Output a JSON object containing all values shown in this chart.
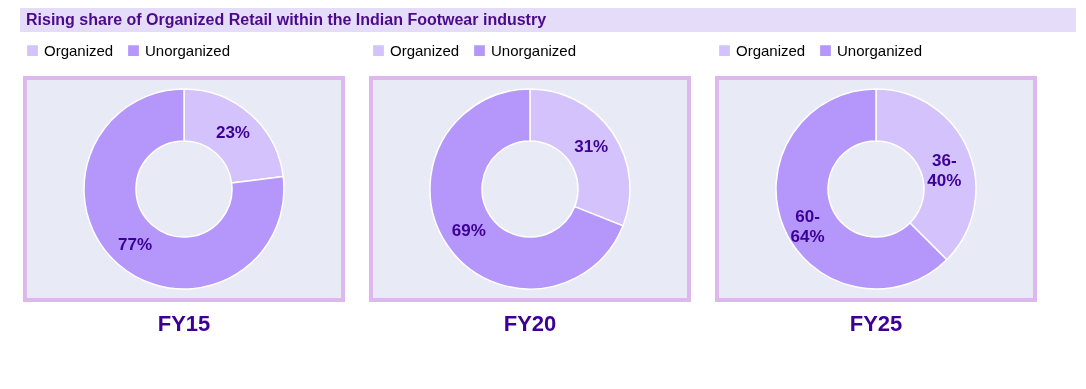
{
  "chart_data": [
    {
      "type": "donut",
      "title": "FY15",
      "annotations": [
        "Rising share of Organized Retail within the Indian Footwear industry"
      ],
      "categories": [
        "Organized",
        "Unorganized"
      ],
      "values": [
        23,
        77
      ],
      "colors": [
        "#d4c2fc",
        "#b596fb"
      ],
      "value_labels": [
        "23%",
        "77%"
      ],
      "legend": "top"
    },
    {
      "type": "donut",
      "title": "FY20",
      "categories": [
        "Organized",
        "Unorganized"
      ],
      "values": [
        31,
        69
      ],
      "colors": [
        "#d4c2fc",
        "#b596fb"
      ],
      "value_labels": [
        "31%",
        "69%"
      ],
      "legend": "top"
    },
    {
      "type": "donut",
      "title": "FY25",
      "categories": [
        "Organized",
        "Unorganized"
      ],
      "values": [
        36,
        60
      ],
      "colors": [
        "#d4c2fc",
        "#b596fb"
      ],
      "value_labels": [
        "36-40%",
        "60-64%"
      ],
      "legend": "top"
    }
  ]
}
